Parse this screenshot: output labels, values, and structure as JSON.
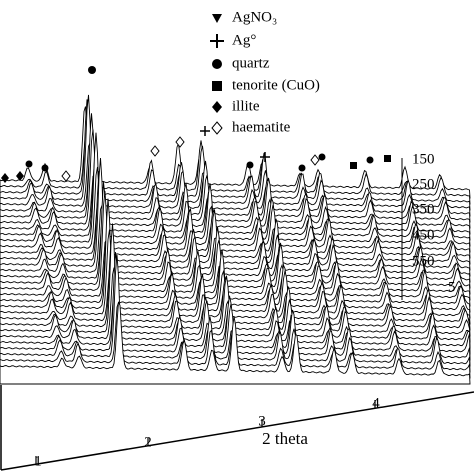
{
  "legend": {
    "entries": [
      "AgNO₃",
      "Ag°",
      "quartz",
      "tenorite (CuO)",
      "illite",
      "haematite"
    ]
  },
  "x_axis": {
    "label": "2 theta",
    "ticks": [
      "1",
      "2",
      "3",
      "4"
    ]
  },
  "depth_axis": {
    "ticks": [
      "150",
      "250",
      "350",
      "450",
      "550",
      "5"
    ]
  }
}
